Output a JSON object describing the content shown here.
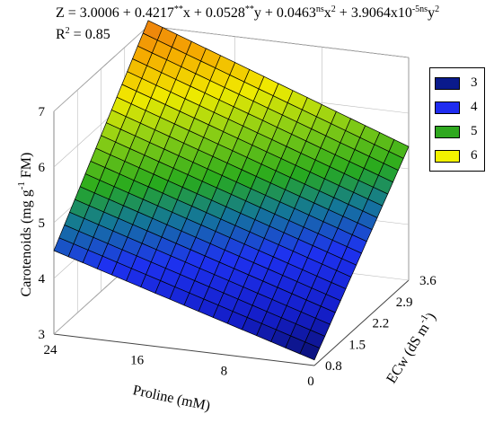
{
  "equation": {
    "z_prefix": "Z = 3.0006 + 0.4217",
    "sig_x": "**",
    "x_text": "x + 0.0528",
    "sig_y": "**",
    "y_text": "y + 0.0463",
    "sig_x2": "ns",
    "x2_text": "x",
    "x2_power": "2",
    "plus_text": " + 3.9064x10",
    "exp_text": "-5ns",
    "y2_text": "y",
    "y2_power": "2",
    "r2_prefix": "R",
    "r2_power": "2",
    "r2_value": " = 0.85"
  },
  "legend": {
    "items": [
      {
        "label": "3",
        "color": "#0a1a8c"
      },
      {
        "label": "4",
        "color": "#1f2cf0"
      },
      {
        "label": "5",
        "color": "#2fa81f"
      },
      {
        "label": "6",
        "color": "#f2f200"
      }
    ]
  },
  "chart_data": {
    "type": "surface",
    "x_axis": {
      "label": "Proline (mM)",
      "ticks": [
        0,
        8,
        16,
        24
      ],
      "range": [
        0,
        24
      ]
    },
    "y_axis": {
      "label": "ECw (dS m-1)",
      "ticks": [
        0.8,
        1.5,
        2.2,
        2.9,
        3.6
      ],
      "range": [
        0.8,
        3.6
      ]
    },
    "z_axis": {
      "label": "Carotenoids (mg g-1 FM)",
      "ticks": [
        3,
        4,
        5,
        6,
        7
      ],
      "range": [
        3,
        7
      ]
    },
    "surface_corners": [
      {
        "proline": 0,
        "ecw": 0.8,
        "z": 3.1
      },
      {
        "proline": 0,
        "ecw": 3.6,
        "z": 5.4
      },
      {
        "proline": 24,
        "ecw": 0.8,
        "z": 4.5
      },
      {
        "proline": 24,
        "ecw": 3.6,
        "z": 7.1
      }
    ],
    "model": {
      "b0": 3.0006,
      "b1": 0.4217,
      "b2": 0.0528,
      "b3": 0.0463,
      "b4": 3.9064e-05
    },
    "r2": 0.85,
    "grid": true,
    "legend_position": "top-right"
  }
}
